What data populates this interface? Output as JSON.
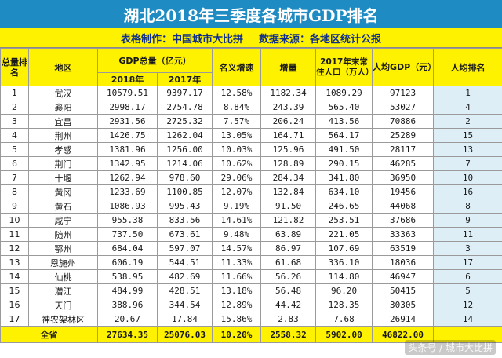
{
  "title": "湖北2018年三季度各城市GDP排名",
  "subtitle": {
    "maker": "表格制作：中国城市大比拼",
    "source": "数据来源：各地区统计公报"
  },
  "headers": {
    "rank": "总量排名",
    "region": "地区",
    "gdp_group": "GDP总量（亿元）",
    "y2018": "2018年",
    "y2017": "2017年",
    "growth": "名义增速",
    "increase": "增量",
    "population": "2017年末常住人口（万人）",
    "per_capita": "人均GDP（元）",
    "pc_rank": "人均排名"
  },
  "rows": [
    {
      "rank": "1",
      "city": "武汉",
      "gdp2018": "10579.51",
      "gdp2017": "9397.17",
      "growth": "12.58%",
      "increase": "1182.34",
      "pop": "1089.29",
      "pc": "97123",
      "pcrank": "1"
    },
    {
      "rank": "2",
      "city": "襄阳",
      "gdp2018": "2998.17",
      "gdp2017": "2754.78",
      "growth": "8.84%",
      "increase": "243.39",
      "pop": "565.40",
      "pc": "53027",
      "pcrank": "4"
    },
    {
      "rank": "3",
      "city": "宜昌",
      "gdp2018": "2931.56",
      "gdp2017": "2725.32",
      "growth": "7.57%",
      "increase": "206.24",
      "pop": "413.56",
      "pc": "70886",
      "pcrank": "2"
    },
    {
      "rank": "4",
      "city": "荆州",
      "gdp2018": "1426.75",
      "gdp2017": "1262.04",
      "growth": "13.05%",
      "increase": "164.71",
      "pop": "564.17",
      "pc": "25289",
      "pcrank": "15"
    },
    {
      "rank": "5",
      "city": "孝感",
      "gdp2018": "1381.96",
      "gdp2017": "1256.00",
      "growth": "10.03%",
      "increase": "125.96",
      "pop": "491.50",
      "pc": "28117",
      "pcrank": "13"
    },
    {
      "rank": "6",
      "city": "荆门",
      "gdp2018": "1342.95",
      "gdp2017": "1214.06",
      "growth": "10.62%",
      "increase": "128.89",
      "pop": "290.15",
      "pc": "46285",
      "pcrank": "7"
    },
    {
      "rank": "7",
      "city": "十堰",
      "gdp2018": "1262.94",
      "gdp2017": "978.60",
      "growth": "29.06%",
      "increase": "284.34",
      "pop": "341.80",
      "pc": "36950",
      "pcrank": "10"
    },
    {
      "rank": "8",
      "city": "黄冈",
      "gdp2018": "1233.69",
      "gdp2017": "1100.85",
      "growth": "12.07%",
      "increase": "132.84",
      "pop": "634.10",
      "pc": "19456",
      "pcrank": "16"
    },
    {
      "rank": "9",
      "city": "黄石",
      "gdp2018": "1086.93",
      "gdp2017": "995.43",
      "growth": "9.19%",
      "increase": "91.50",
      "pop": "246.65",
      "pc": "44068",
      "pcrank": "8"
    },
    {
      "rank": "10",
      "city": "咸宁",
      "gdp2018": "955.38",
      "gdp2017": "833.56",
      "growth": "14.61%",
      "increase": "121.82",
      "pop": "253.51",
      "pc": "37686",
      "pcrank": "9"
    },
    {
      "rank": "11",
      "city": "随州",
      "gdp2018": "737.50",
      "gdp2017": "673.61",
      "growth": "9.48%",
      "increase": "63.89",
      "pop": "221.05",
      "pc": "33363",
      "pcrank": "11"
    },
    {
      "rank": "12",
      "city": "鄂州",
      "gdp2018": "684.04",
      "gdp2017": "597.07",
      "growth": "14.57%",
      "increase": "86.97",
      "pop": "107.69",
      "pc": "63519",
      "pcrank": "3"
    },
    {
      "rank": "13",
      "city": "恩施州",
      "gdp2018": "606.19",
      "gdp2017": "544.51",
      "growth": "11.33%",
      "increase": "61.68",
      "pop": "336.10",
      "pc": "18036",
      "pcrank": "17"
    },
    {
      "rank": "14",
      "city": "仙桃",
      "gdp2018": "538.95",
      "gdp2017": "482.69",
      "growth": "11.66%",
      "increase": "56.26",
      "pop": "114.80",
      "pc": "46947",
      "pcrank": "6"
    },
    {
      "rank": "15",
      "city": "潜江",
      "gdp2018": "484.99",
      "gdp2017": "428.51",
      "growth": "13.18%",
      "increase": "56.48",
      "pop": "96.20",
      "pc": "50415",
      "pcrank": "5"
    },
    {
      "rank": "16",
      "city": "天门",
      "gdp2018": "388.96",
      "gdp2017": "344.54",
      "growth": "12.89%",
      "increase": "44.42",
      "pop": "128.35",
      "pc": "30305",
      "pcrank": "12"
    },
    {
      "rank": "17",
      "city": "神农架林区",
      "gdp2018": "20.67",
      "gdp2017": "17.84",
      "growth": "15.86%",
      "increase": "2.83",
      "pop": "7.68",
      "pc": "26914",
      "pcrank": "14"
    }
  ],
  "total": {
    "label": "全省",
    "gdp2018": "27634.35",
    "gdp2017": "25076.03",
    "growth": "10.20%",
    "increase": "2558.32",
    "pop": "5902.00",
    "pc": "46822.00"
  },
  "watermark": "头条号 / 城市大比拼",
  "colors": {
    "title_bg": "#1E8BC3",
    "header_bg": "#FFF200",
    "pcrank_bg": "#DDEEF6"
  }
}
